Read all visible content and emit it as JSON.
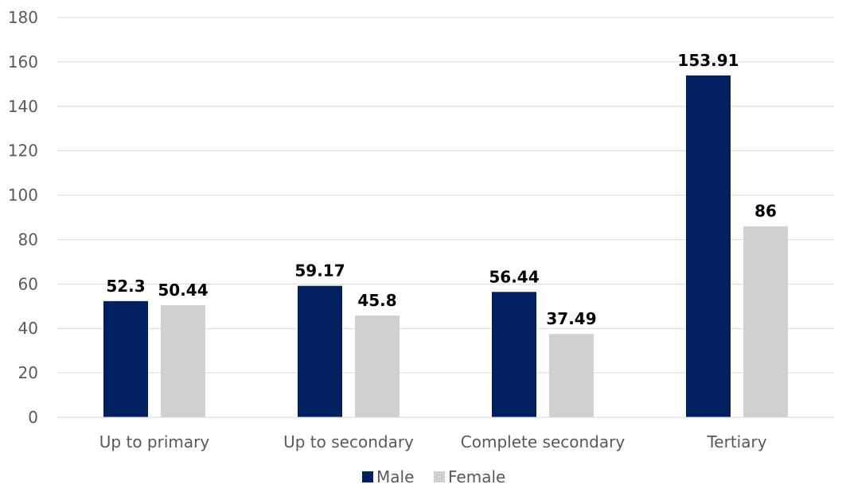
{
  "chart_data": {
    "type": "bar",
    "title": "",
    "xlabel": "",
    "ylabel": "",
    "ylim": [
      0,
      180
    ],
    "yticks": [
      0,
      20,
      40,
      60,
      80,
      100,
      120,
      140,
      160,
      180
    ],
    "grid": true,
    "legend": "bottom",
    "categories": [
      "Up to primary",
      "Up to secondary",
      "Complete secondary",
      "Tertiary"
    ],
    "series": [
      {
        "name": "Male",
        "color": "#002060",
        "values": [
          52.3,
          59.17,
          56.44,
          153.91
        ],
        "labels": [
          "52.3",
          "59.17",
          "56.44",
          "153.91"
        ]
      },
      {
        "name": "Female",
        "color": "#d0d0d0",
        "values": [
          50.44,
          45.8,
          37.49,
          86
        ],
        "labels": [
          "50.44",
          "45.8",
          "37.49",
          "86"
        ]
      }
    ]
  }
}
